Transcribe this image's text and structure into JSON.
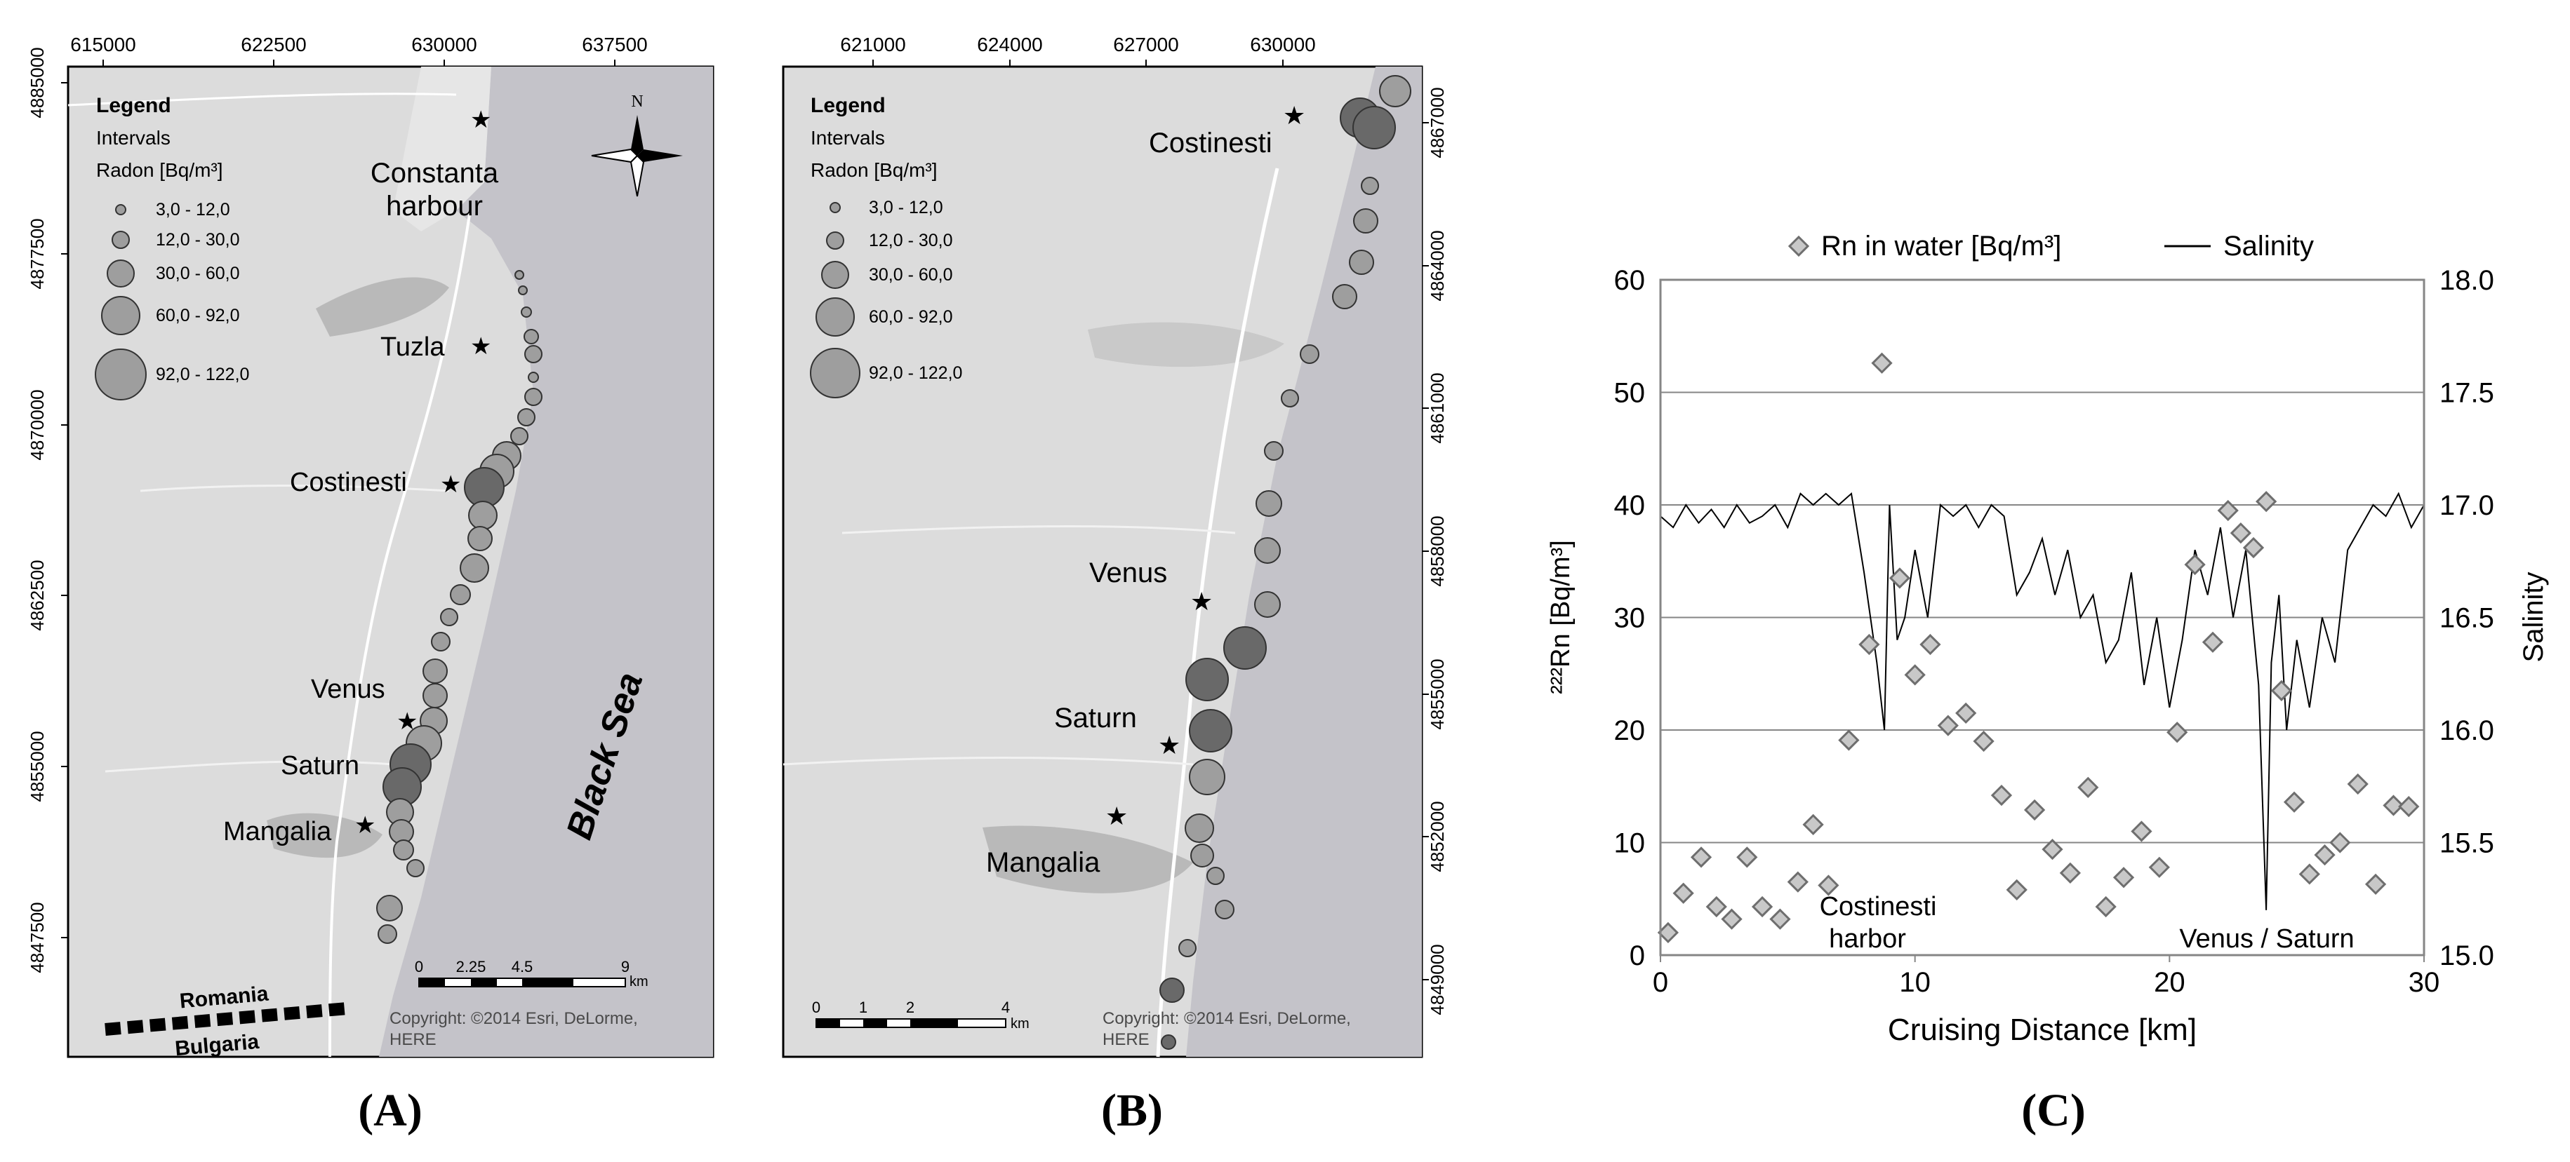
{
  "panels": {
    "a": {
      "label": "(A)",
      "x_ticks": [
        "615000",
        "622500",
        "630000",
        "637500"
      ],
      "y_ticks": [
        "4885000",
        "4877500",
        "4870000",
        "4862500",
        "4855000",
        "4847500"
      ],
      "legend": {
        "title": "Legend",
        "subtitle": "Intervals",
        "unit": "Radon [Bq/m³]",
        "classes": [
          "3,0 - 12,0",
          "12,0 - 30,0",
          "30,0 - 60,0",
          "60,0 - 92,0",
          "92,0 - 122,0"
        ]
      },
      "places": {
        "constanta": "Constanta",
        "harbour": "harbour",
        "tuzla": "Tuzla",
        "costinesti": "Costinesti",
        "venus": "Venus",
        "saturn": "Saturn",
        "mangalia": "Mangalia",
        "black_sea": "Black Sea",
        "romania": "Romania",
        "bulgaria": "Bulgaria"
      },
      "north": "N",
      "scale": {
        "ticks": [
          "0",
          "2.25",
          "4.5",
          "9"
        ],
        "unit": "km"
      },
      "copyright_1": "Copyright: ©2014 Esri, DeLorme,",
      "copyright_2": "HERE"
    },
    "b": {
      "label": "(B)",
      "x_ticks": [
        "621000",
        "624000",
        "627000",
        "630000"
      ],
      "y_ticks": [
        "4867000",
        "4864000",
        "4861000",
        "4858000",
        "4855000",
        "4852000",
        "4849000"
      ],
      "legend": {
        "title": "Legend",
        "subtitle": "Intervals",
        "unit": "Radon [Bq/m³]",
        "classes": [
          "3,0 - 12,0",
          "12,0 - 30,0",
          "30,0 - 60,0",
          "60,0 - 92,0",
          "92,0 - 122,0"
        ]
      },
      "places": {
        "costinesti": "Costinesti",
        "venus": "Venus",
        "saturn": "Saturn",
        "mangalia": "Mangalia"
      },
      "scale": {
        "ticks": [
          "0",
          "1",
          "2",
          "4"
        ],
        "unit": "km"
      },
      "copyright_1": "Copyright: ©2014 Esri, DeLorme,",
      "copyright_2": "HERE"
    },
    "c": {
      "label": "(C)"
    }
  },
  "chart_data": {
    "type": "scatter",
    "title": "",
    "xlabel": "Cruising Distance [km]",
    "ylabel": "²²²Rn [Bq/m³]",
    "y2label": "Salinity",
    "xlim": [
      0,
      30
    ],
    "ylim": [
      0,
      60
    ],
    "y2lim": [
      15.0,
      18.0
    ],
    "x_ticks": [
      "0",
      "10",
      "20",
      "30"
    ],
    "y_ticks": [
      "0",
      "10",
      "20",
      "30",
      "40",
      "50",
      "60"
    ],
    "y2_ticks": [
      "15.0",
      "15.5",
      "16.0",
      "16.5",
      "17.0",
      "17.5",
      "18.0"
    ],
    "legend": {
      "rn": "Rn in water [Bq/m³]",
      "salinity": "Salinity"
    },
    "annotations": {
      "harbor_1": "Costinesti",
      "harbor_2": "harbor",
      "venus": "Venus / Saturn"
    },
    "grid": true,
    "series": [
      {
        "name": "Rn in water [Bq/m³]",
        "marker": "diamond",
        "x": [
          0.3,
          0.9,
          1.6,
          2.2,
          2.8,
          3.4,
          4.0,
          4.7,
          5.4,
          6.0,
          6.6,
          7.4,
          8.2,
          8.7,
          9.4,
          10.0,
          10.6,
          11.3,
          12.0,
          12.7,
          13.4,
          14.0,
          14.7,
          15.4,
          16.1,
          16.8,
          17.5,
          18.2,
          18.9,
          19.6,
          20.3,
          21.0,
          21.7,
          22.3,
          22.8,
          23.3,
          23.8,
          24.4,
          24.9,
          25.5,
          26.1,
          26.7,
          27.4,
          28.1,
          28.8,
          29.4
        ],
        "values": [
          2,
          5.5,
          8.7,
          4.3,
          3.2,
          8.7,
          4.3,
          3.2,
          6.5,
          11.6,
          6.2,
          19.1,
          27.6,
          52.6,
          33.5,
          24.9,
          27.6,
          20.4,
          21.5,
          19.0,
          14.2,
          5.8,
          12.9,
          9.4,
          7.3,
          14.9,
          4.3,
          6.9,
          11.0,
          7.8,
          19.8,
          34.7,
          27.8,
          39.5,
          37.5,
          36.2,
          40.3,
          23.5,
          13.6,
          7.2,
          8.9,
          10.0,
          15.2,
          6.3,
          13.3,
          13.2
        ]
      },
      {
        "name": "Salinity",
        "marker": "line",
        "x": [
          0,
          0.5,
          1.0,
          1.5,
          2.0,
          2.5,
          3.0,
          3.5,
          4.0,
          4.5,
          5.0,
          5.5,
          6.0,
          6.5,
          7.0,
          7.5,
          8.0,
          8.5,
          8.8,
          9.0,
          9.3,
          9.6,
          10.0,
          10.5,
          11.0,
          11.5,
          12.0,
          12.5,
          13.0,
          13.5,
          14.0,
          14.5,
          15.0,
          15.5,
          16.0,
          16.5,
          17.0,
          17.5,
          18.0,
          18.5,
          19.0,
          19.5,
          20.0,
          20.5,
          21.0,
          21.5,
          22.0,
          22.5,
          23.0,
          23.5,
          23.8,
          24.0,
          24.3,
          24.6,
          25.0,
          25.5,
          26.0,
          26.5,
          27.0,
          27.5,
          28.0,
          28.5,
          29.0,
          29.5,
          30.0
        ],
        "values": [
          16.95,
          16.9,
          17.0,
          16.92,
          16.98,
          16.9,
          17.0,
          16.92,
          16.95,
          17.0,
          16.9,
          17.05,
          17.0,
          17.05,
          17.0,
          17.05,
          16.7,
          16.3,
          16.0,
          17.0,
          16.4,
          16.5,
          16.8,
          16.5,
          17.0,
          16.95,
          17.0,
          16.9,
          17.0,
          16.95,
          16.6,
          16.7,
          16.85,
          16.6,
          16.8,
          16.5,
          16.6,
          16.3,
          16.4,
          16.7,
          16.2,
          16.5,
          16.1,
          16.4,
          16.8,
          16.6,
          16.9,
          16.5,
          16.8,
          16.2,
          15.2,
          16.3,
          16.6,
          16.0,
          16.4,
          16.1,
          16.5,
          16.3,
          16.8,
          16.9,
          17.0,
          16.95,
          17.05,
          16.9,
          17.0
        ]
      }
    ]
  }
}
